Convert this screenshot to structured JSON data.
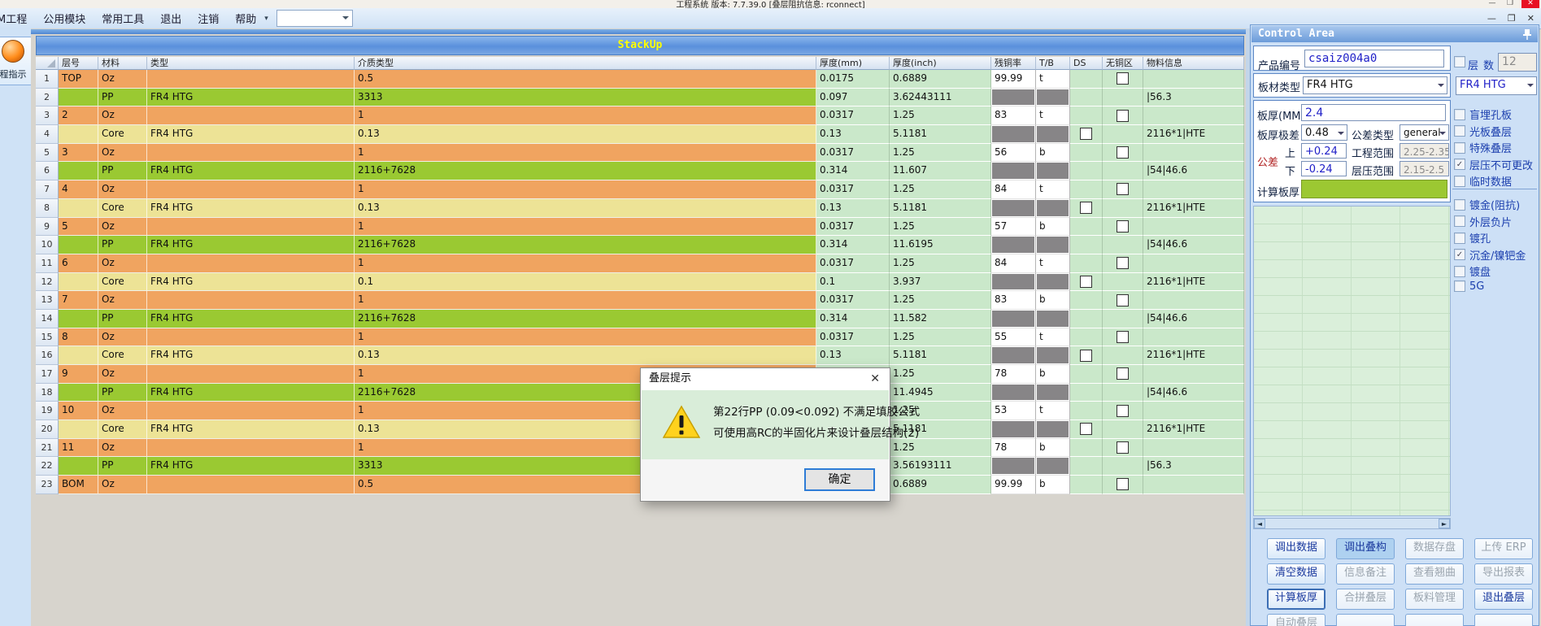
{
  "window": {
    "title": "工程系统 版本: 7.7.39.0 [叠层阻抗信息: rconnect]"
  },
  "menu": {
    "items": [
      "M工程",
      "公用模块",
      "常用工具",
      "退出",
      "注销",
      "帮助"
    ]
  },
  "left_panel": {
    "flow_button_label": "程指示"
  },
  "colors": {
    "cu": "#F0A460",
    "pp": "#9AC932",
    "core": "#EDE396",
    "green_cell": "#CAE8CA",
    "gray_cell": "#878587",
    "stackup_title": "#FFFF00"
  },
  "stackup": {
    "title": "StackUp",
    "columns": [
      {
        "key": "num",
        "label": ""
      },
      {
        "key": "layer",
        "label": "层号"
      },
      {
        "key": "material",
        "label": "材料"
      },
      {
        "key": "type",
        "label": "类型"
      },
      {
        "key": "dielectric",
        "label": "介质类型"
      },
      {
        "key": "mm",
        "label": "厚度(mm)"
      },
      {
        "key": "inch",
        "label": "厚度(inch)"
      },
      {
        "key": "copper",
        "label": "残铜率"
      },
      {
        "key": "tb",
        "label": "T/B"
      },
      {
        "key": "ds",
        "label": "DS"
      },
      {
        "key": "nocu",
        "label": "无铜区"
      },
      {
        "key": "info",
        "label": "物料信息"
      }
    ],
    "rows": [
      {
        "kind": "cu",
        "layer": "TOP",
        "material": "Oz",
        "type": "",
        "dielectric": "0.5",
        "mm": "0.0175",
        "inch": "0.6889",
        "copper": "99.99",
        "tb": "t",
        "ds_cb": false,
        "nocu_cb": true,
        "info": ""
      },
      {
        "kind": "pp",
        "layer": "",
        "material": "PP",
        "type": "FR4 HTG",
        "dielectric": "3313",
        "mm": "0.097",
        "inch": "3.62443111",
        "copper": "",
        "tb": "",
        "ds_cb": false,
        "nocu_cb": false,
        "info": "|56.3"
      },
      {
        "kind": "cu",
        "layer": "2",
        "material": "Oz",
        "type": "",
        "dielectric": "1",
        "mm": "0.0317",
        "inch": "1.25",
        "copper": "83",
        "tb": "t",
        "ds_cb": false,
        "nocu_cb": true,
        "info": ""
      },
      {
        "kind": "core",
        "layer": "",
        "material": "Core",
        "type": "FR4 HTG",
        "dielectric": "0.13",
        "mm": "0.13",
        "inch": "5.1181",
        "copper": "",
        "tb": "",
        "ds_cb": true,
        "nocu_cb": false,
        "info": "2116*1|HTE"
      },
      {
        "kind": "cu",
        "layer": "3",
        "material": "Oz",
        "type": "",
        "dielectric": "1",
        "mm": "0.0317",
        "inch": "1.25",
        "copper": "56",
        "tb": "b",
        "ds_cb": false,
        "nocu_cb": true,
        "info": ""
      },
      {
        "kind": "pp",
        "layer": "",
        "material": "PP",
        "type": "FR4 HTG",
        "dielectric": "2116+7628",
        "mm": "0.314",
        "inch": "11.607",
        "copper": "",
        "tb": "",
        "ds_cb": false,
        "nocu_cb": false,
        "info": "|54|46.6"
      },
      {
        "kind": "cu",
        "layer": "4",
        "material": "Oz",
        "type": "",
        "dielectric": "1",
        "mm": "0.0317",
        "inch": "1.25",
        "copper": "84",
        "tb": "t",
        "ds_cb": false,
        "nocu_cb": true,
        "info": ""
      },
      {
        "kind": "core",
        "layer": "",
        "material": "Core",
        "type": "FR4 HTG",
        "dielectric": "0.13",
        "mm": "0.13",
        "inch": "5.1181",
        "copper": "",
        "tb": "",
        "ds_cb": true,
        "nocu_cb": false,
        "info": "2116*1|HTE"
      },
      {
        "kind": "cu",
        "layer": "5",
        "material": "Oz",
        "type": "",
        "dielectric": "1",
        "mm": "0.0317",
        "inch": "1.25",
        "copper": "57",
        "tb": "b",
        "ds_cb": false,
        "nocu_cb": true,
        "info": ""
      },
      {
        "kind": "pp",
        "layer": "",
        "material": "PP",
        "type": "FR4 HTG",
        "dielectric": "2116+7628",
        "mm": "0.314",
        "inch": "11.6195",
        "copper": "",
        "tb": "",
        "ds_cb": false,
        "nocu_cb": false,
        "info": "|54|46.6"
      },
      {
        "kind": "cu",
        "layer": "6",
        "material": "Oz",
        "type": "",
        "dielectric": "1",
        "mm": "0.0317",
        "inch": "1.25",
        "copper": "84",
        "tb": "t",
        "ds_cb": false,
        "nocu_cb": true,
        "info": ""
      },
      {
        "kind": "core",
        "layer": "",
        "material": "Core",
        "type": "FR4 HTG",
        "dielectric": "0.1",
        "mm": "0.1",
        "inch": "3.937",
        "copper": "",
        "tb": "",
        "ds_cb": true,
        "nocu_cb": false,
        "info": "2116*1|HTE"
      },
      {
        "kind": "cu",
        "layer": "7",
        "material": "Oz",
        "type": "",
        "dielectric": "1",
        "mm": "0.0317",
        "inch": "1.25",
        "copper": "83",
        "tb": "b",
        "ds_cb": false,
        "nocu_cb": true,
        "info": ""
      },
      {
        "kind": "pp",
        "layer": "",
        "material": "PP",
        "type": "FR4 HTG",
        "dielectric": "2116+7628",
        "mm": "0.314",
        "inch": "11.582",
        "copper": "",
        "tb": "",
        "ds_cb": false,
        "nocu_cb": false,
        "info": "|54|46.6"
      },
      {
        "kind": "cu",
        "layer": "8",
        "material": "Oz",
        "type": "",
        "dielectric": "1",
        "mm": "0.0317",
        "inch": "1.25",
        "copper": "55",
        "tb": "t",
        "ds_cb": false,
        "nocu_cb": true,
        "info": ""
      },
      {
        "kind": "core",
        "layer": "",
        "material": "Core",
        "type": "FR4 HTG",
        "dielectric": "0.13",
        "mm": "0.13",
        "inch": "5.1181",
        "copper": "",
        "tb": "",
        "ds_cb": true,
        "nocu_cb": false,
        "info": "2116*1|HTE"
      },
      {
        "kind": "cu",
        "layer": "9",
        "material": "Oz",
        "type": "",
        "dielectric": "1",
        "mm": "",
        "inch": "1.25",
        "copper": "78",
        "tb": "b",
        "ds_cb": false,
        "nocu_cb": true,
        "info": ""
      },
      {
        "kind": "pp",
        "layer": "",
        "material": "PP",
        "type": "FR4 HTG",
        "dielectric": "2116+7628",
        "mm": "",
        "inch": "11.4945",
        "copper": "",
        "tb": "",
        "ds_cb": false,
        "nocu_cb": false,
        "info": "|54|46.6"
      },
      {
        "kind": "cu",
        "layer": "10",
        "material": "Oz",
        "type": "",
        "dielectric": "1",
        "mm": "",
        "inch": "1.25",
        "copper": "53",
        "tb": "t",
        "ds_cb": false,
        "nocu_cb": true,
        "info": ""
      },
      {
        "kind": "core",
        "layer": "",
        "material": "Core",
        "type": "FR4 HTG",
        "dielectric": "0.13",
        "mm": "",
        "inch": "5.1181",
        "copper": "",
        "tb": "",
        "ds_cb": true,
        "nocu_cb": false,
        "info": "2116*1|HTE"
      },
      {
        "kind": "cu",
        "layer": "11",
        "material": "Oz",
        "type": "",
        "dielectric": "1",
        "mm": "",
        "inch": "1.25",
        "copper": "78",
        "tb": "b",
        "ds_cb": false,
        "nocu_cb": true,
        "info": ""
      },
      {
        "kind": "pp",
        "layer": "",
        "material": "PP",
        "type": "FR4 HTG",
        "dielectric": "3313",
        "mm": "",
        "inch": "3.56193111",
        "copper": "",
        "tb": "",
        "ds_cb": false,
        "nocu_cb": false,
        "info": "|56.3"
      },
      {
        "kind": "cu",
        "layer": "BOM",
        "material": "Oz",
        "type": "",
        "dielectric": "0.5",
        "mm": "",
        "inch": "0.6889",
        "copper": "99.99",
        "tb": "b",
        "ds_cb": false,
        "nocu_cb": true,
        "info": ""
      }
    ]
  },
  "dialog": {
    "title": "叠层提示",
    "line1": "第22行PP (0.09<0.092) 不满足填胶公式",
    "line2": "可使用高RC的半固化片来设计叠层结构(2)",
    "ok_label": "确定"
  },
  "control": {
    "header": "Control Area",
    "product_label": "产品编号",
    "product_value": "csaiz004a0",
    "layers_label_1": "层",
    "layers_label_2": "数",
    "layers_value": "12",
    "board_type_label": "板材类型",
    "board_type_value": "FR4 HTG",
    "board_type_value2": "FR4 HTG",
    "thickness_label": "板厚(MM)",
    "thickness_value": "2.4",
    "range_label": "板厚极差",
    "range_value": "0.48",
    "tol_type_label": "公差类型",
    "tol_type_value": "general",
    "tol_label": "公差",
    "tol_up_label": "上",
    "tol_up_value": "+0.24",
    "eng_range_label": "工程范围",
    "eng_range_value": "2.25-2.35",
    "tol_down_label": "下",
    "tol_down_value": "-0.24",
    "press_range_label": "层压范围",
    "press_range_value": "2.15-2.5",
    "calc_label": "计算板厚",
    "checkboxes": [
      {
        "name": "blind-buried-via",
        "label": "盲埋孔板",
        "checked": false
      },
      {
        "name": "bare-board-stackup",
        "label": "光板叠层",
        "checked": false
      },
      {
        "name": "special-stackup",
        "label": "特殊叠层",
        "checked": false
      },
      {
        "name": "lamination-locked",
        "label": "层压不可更改",
        "checked": true
      },
      {
        "name": "temp-data",
        "label": "临时数据",
        "checked": false
      },
      {
        "name": "gold-plating-impedance",
        "label": "镀金(阻抗)",
        "checked": false
      },
      {
        "name": "outer-negative",
        "label": "外层负片",
        "checked": false
      },
      {
        "name": "plated-hole",
        "label": "镀孔",
        "checked": false
      },
      {
        "name": "enig-nipdau",
        "label": "沉金/镍钯金",
        "checked": true
      },
      {
        "name": "plated-pad",
        "label": "镀盘",
        "checked": false
      },
      {
        "name": "five-g",
        "label": "5G",
        "checked": false
      }
    ],
    "buttons": [
      {
        "name": "load-data-button",
        "label": "调出数据",
        "state": "enabled"
      },
      {
        "name": "load-stackup-button",
        "label": "调出叠构",
        "state": "active"
      },
      {
        "name": "save-data-button",
        "label": "数据存盘",
        "state": "disabled"
      },
      {
        "name": "upload-erp-button",
        "label": "上传 ERP",
        "state": "disabled"
      },
      {
        "name": "clear-data-button",
        "label": "清空数据",
        "state": "enabled"
      },
      {
        "name": "info-notes-button",
        "label": "信息备注",
        "state": "disabled"
      },
      {
        "name": "view-warpage-button",
        "label": "查看翘曲",
        "state": "disabled"
      },
      {
        "name": "export-report-button",
        "label": "导出报表",
        "state": "disabled"
      },
      {
        "name": "calc-thickness-button",
        "label": "计算板厚",
        "state": "focused"
      },
      {
        "name": "merge-stackup-button",
        "label": "合拼叠层",
        "state": "disabled"
      },
      {
        "name": "material-manage-button",
        "label": "板料管理",
        "state": "disabled"
      },
      {
        "name": "exit-stackup-button",
        "label": "退出叠层",
        "state": "enabled"
      },
      {
        "name": "auto-stackup-button",
        "label": "自动叠层",
        "state": "disabled"
      },
      {
        "name": "empty-button-1",
        "label": "",
        "state": "disabled"
      },
      {
        "name": "empty-button-2",
        "label": "",
        "state": "disabled"
      },
      {
        "name": "empty-button-3",
        "label": "",
        "state": "disabled"
      }
    ]
  }
}
